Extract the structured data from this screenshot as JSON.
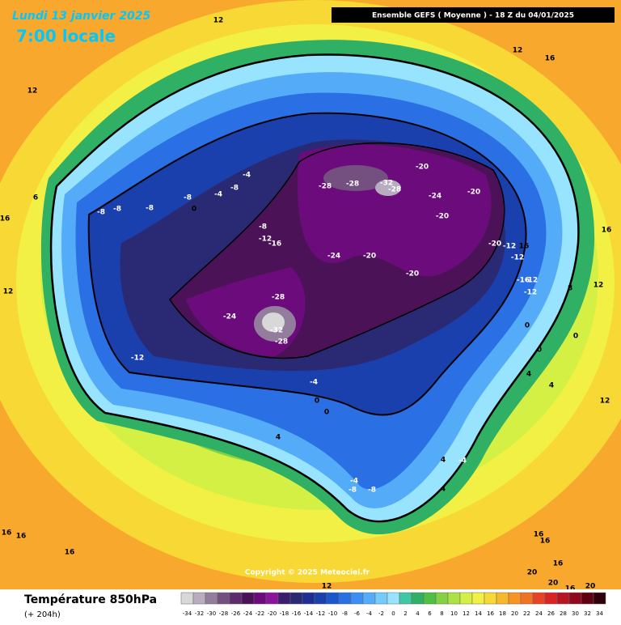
{
  "header": {
    "date": "Lundi 13 janvier 2025",
    "time": "7:00 locale",
    "model": "Ensemble GEFS  ( Moyenne )  -  18 Z du 04/01/2025"
  },
  "copyright": "Copyright © 2025 Meteociel.fr",
  "footer": {
    "title": "Température 850hPa",
    "lead": "(+ 204h)"
  },
  "colorbar": {
    "values": [
      -34,
      -32,
      -30,
      -28,
      -26,
      -24,
      -22,
      -20,
      -18,
      -16,
      -14,
      -12,
      -10,
      -8,
      -6,
      -4,
      -2,
      0,
      2,
      4,
      6,
      8,
      10,
      12,
      14,
      16,
      18,
      20,
      22,
      24,
      26,
      28,
      30,
      32,
      34
    ],
    "colors": [
      "#d8d8d8",
      "#b8acc0",
      "#927e9c",
      "#745080",
      "#5e2c6c",
      "#4c1258",
      "#6c0c7c",
      "#8c149c",
      "#3c1c6c",
      "#2a2a74",
      "#1e2e92",
      "#1a40ae",
      "#1a56cc",
      "#2a70e4",
      "#3c8ef2",
      "#54acf8",
      "#74ccfc",
      "#98e4ff",
      "#40c8a4",
      "#30b064",
      "#50c044",
      "#84d244",
      "#ace244",
      "#d4f044",
      "#f2f044",
      "#f8d834",
      "#f8b82c",
      "#f89424",
      "#f07224",
      "#e84424",
      "#d82424",
      "#b81424",
      "#90081c",
      "#600012",
      "#30000a"
    ]
  },
  "map": {
    "contour_labels": [
      12,
      12,
      12,
      16,
      6,
      16,
      12,
      -8,
      -8,
      -8,
      -8,
      -4,
      0,
      -8,
      -4,
      -8,
      -12,
      -16,
      -28,
      -28,
      -32,
      -28,
      -20,
      -24,
      -20,
      -20,
      -24,
      -20,
      -20,
      -28,
      -24,
      -32,
      -28,
      -12,
      -4,
      0,
      0,
      4,
      -20,
      -12,
      16,
      -12,
      -16,
      -12,
      -12,
      0,
      0,
      0,
      4,
      4,
      8,
      12,
      16,
      12,
      -4,
      -8,
      -8,
      4,
      4,
      -4,
      16,
      16,
      16,
      16,
      16,
      16,
      20,
      20,
      16,
      20,
      12
    ]
  }
}
